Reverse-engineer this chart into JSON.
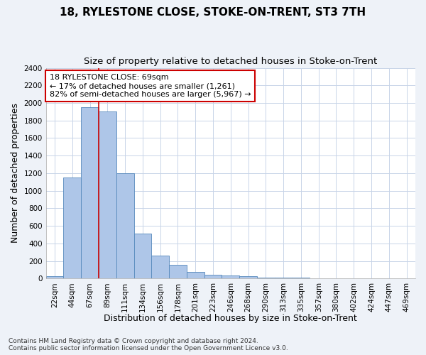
{
  "title": "18, RYLESTONE CLOSE, STOKE-ON-TRENT, ST3 7TH",
  "subtitle": "Size of property relative to detached houses in Stoke-on-Trent",
  "xlabel": "Distribution of detached houses by size in Stoke-on-Trent",
  "ylabel": "Number of detached properties",
  "footnote1": "Contains HM Land Registry data © Crown copyright and database right 2024.",
  "footnote2": "Contains public sector information licensed under the Open Government Licence v3.0.",
  "bar_labels": [
    "22sqm",
    "44sqm",
    "67sqm",
    "89sqm",
    "111sqm",
    "134sqm",
    "156sqm",
    "178sqm",
    "201sqm",
    "223sqm",
    "246sqm",
    "268sqm",
    "290sqm",
    "313sqm",
    "335sqm",
    "357sqm",
    "380sqm",
    "402sqm",
    "424sqm",
    "447sqm",
    "469sqm"
  ],
  "bar_values": [
    30,
    1150,
    1950,
    1900,
    1200,
    510,
    260,
    155,
    75,
    40,
    38,
    28,
    10,
    10,
    7,
    3,
    2,
    2,
    1,
    1,
    1
  ],
  "bar_color": "#aec6e8",
  "bar_edge_color": "#5588bb",
  "vline_x": 2.5,
  "vline_color": "#cc0000",
  "annotation_text": "18 RYLESTONE CLOSE: 69sqm\n← 17% of detached houses are smaller (1,261)\n82% of semi-detached houses are larger (5,967) →",
  "annotation_box_color": "#ffffff",
  "annotation_box_edge_color": "#cc0000",
  "ylim": [
    0,
    2400
  ],
  "yticks": [
    0,
    200,
    400,
    600,
    800,
    1000,
    1200,
    1400,
    1600,
    1800,
    2000,
    2200,
    2400
  ],
  "title_fontsize": 11,
  "subtitle_fontsize": 9.5,
  "axis_label_fontsize": 9,
  "tick_fontsize": 7.5,
  "annotation_fontsize": 8,
  "footnote_fontsize": 6.5,
  "background_color": "#eef2f8",
  "plot_background_color": "#ffffff",
  "grid_color": "#c8d4e8"
}
